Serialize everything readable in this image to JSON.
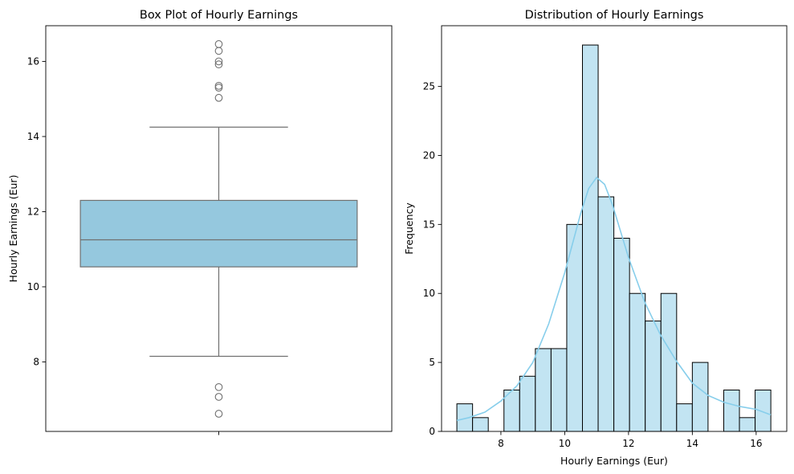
{
  "colors": {
    "box_fill": "#95c8de",
    "box_line": "#707070",
    "hist_fill": "#c2e4f2",
    "hist_edge": "#000000",
    "kde": "#87ceeb",
    "axes": "#000000"
  },
  "chart_data": [
    {
      "type": "box",
      "title": "Box Plot of Hourly Earnings",
      "xlabel": "",
      "ylabel": "Hourly Earnings (Eur)",
      "ylim": [
        6.15,
        16.95
      ],
      "yticks": [
        8,
        10,
        12,
        14,
        16
      ],
      "ytick_labels": [
        "8",
        "10",
        "12",
        "14",
        "16"
      ],
      "box": {
        "whisker_low": 8.15,
        "q1": 10.53,
        "median": 11.25,
        "q3": 12.3,
        "whisker_high": 14.25
      },
      "outliers": [
        6.62,
        7.07,
        7.33,
        15.03,
        15.3,
        15.35,
        15.92,
        16.0,
        16.28,
        16.46
      ]
    },
    {
      "type": "histogram",
      "title": "Distribution of Hourly Earnings",
      "xlabel": "Hourly Earnings (Eur)",
      "ylabel": "Frequency",
      "xlim": [
        6.14,
        16.96
      ],
      "ylim": [
        0,
        29.4
      ],
      "xticks": [
        8,
        10,
        12,
        14,
        16
      ],
      "xtick_labels": [
        "8",
        "10",
        "12",
        "14",
        "16"
      ],
      "yticks": [
        0,
        5,
        10,
        15,
        20,
        25
      ],
      "ytick_labels": [
        "0",
        "5",
        "10",
        "15",
        "20",
        "25"
      ],
      "bin_start": 6.62,
      "bin_width": 0.492,
      "counts": [
        2,
        1,
        0,
        3,
        4,
        6,
        6,
        15,
        28,
        17,
        14,
        10,
        8,
        10,
        2,
        5,
        0,
        3,
        1,
        3
      ],
      "kde": {
        "x": [
          6.62,
          7.0,
          7.5,
          8.0,
          8.5,
          9.0,
          9.5,
          10.0,
          10.5,
          10.75,
          11.0,
          11.25,
          11.5,
          12.0,
          12.5,
          13.0,
          13.5,
          14.0,
          14.5,
          15.0,
          15.5,
          16.0,
          16.46
        ],
        "y": [
          0.8,
          1.0,
          1.4,
          2.2,
          3.3,
          5.0,
          7.8,
          11.5,
          15.8,
          17.6,
          18.4,
          17.9,
          16.4,
          12.6,
          9.4,
          7.0,
          5.1,
          3.5,
          2.6,
          2.1,
          1.8,
          1.6,
          1.2
        ]
      }
    }
  ]
}
